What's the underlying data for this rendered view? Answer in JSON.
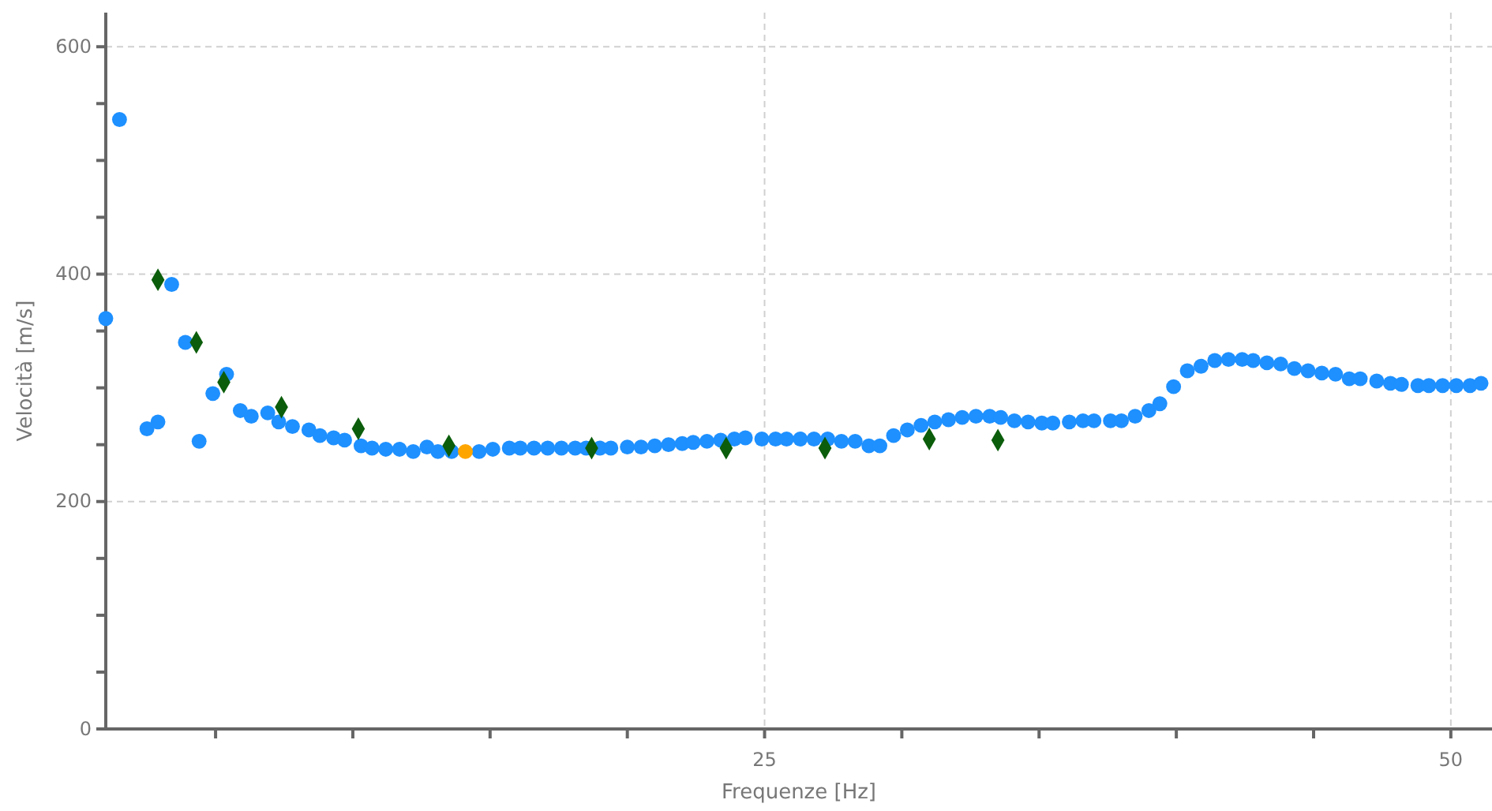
{
  "chart_data": {
    "type": "scatter",
    "xlabel": "Frequenze [Hz]",
    "ylabel": "Velocità [m/s]",
    "xlim": [
      1,
      51.5
    ],
    "xticks": [
      {
        "value": 5,
        "label": null
      },
      {
        "value": 10,
        "label": null
      },
      {
        "value": 15,
        "label": null
      },
      {
        "value": 20,
        "label": null
      },
      25,
      {
        "value": 30,
        "label": null
      },
      {
        "value": 35,
        "label": null
      },
      {
        "value": 40,
        "label": null
      },
      {
        "value": 45,
        "label": null
      },
      50
    ],
    "ylim": [
      0,
      630
    ],
    "yticks": [
      0,
      {
        "value": 50,
        "label": null
      },
      {
        "value": 100,
        "label": null
      },
      {
        "value": 150,
        "label": null
      },
      200,
      {
        "value": 250,
        "label": null
      },
      {
        "value": 300,
        "label": null
      },
      {
        "value": 350,
        "label": null
      },
      400,
      {
        "value": 450,
        "label": null
      },
      {
        "value": 500,
        "label": null
      },
      {
        "value": 550,
        "label": null
      },
      600
    ],
    "grid": true,
    "series": [
      {
        "color": "#1e90ff",
        "marker": "circle",
        "x": [
          1.0,
          1.5,
          2.5,
          2.9,
          3.4,
          3.9,
          4.4,
          4.9,
          5.4,
          5.9,
          6.3,
          6.9,
          7.3,
          7.8,
          8.4,
          8.8,
          9.3,
          9.7,
          10.3,
          10.7,
          11.2,
          11.7,
          12.2,
          12.7,
          13.1,
          13.6,
          14.6,
          15.1,
          15.7,
          16.1,
          16.6,
          17.1,
          17.6,
          18.1,
          18.5,
          19.0,
          19.4,
          20.0,
          20.5,
          21.0,
          21.5,
          22.0,
          22.4,
          22.9,
          23.4,
          23.9,
          24.3,
          24.9,
          25.4,
          25.8,
          26.3,
          26.8,
          27.3,
          27.8,
          28.3,
          28.8,
          29.2,
          29.7,
          30.2,
          30.7,
          31.2,
          31.7,
          32.2,
          32.7,
          33.2,
          33.6,
          34.1,
          34.6,
          35.1,
          35.5,
          36.1,
          36.6,
          37.0,
          37.6,
          38.0,
          38.5,
          39.0,
          39.4,
          39.9,
          40.4,
          40.9,
          41.4,
          41.9,
          42.4,
          42.8,
          43.3,
          43.8,
          44.3,
          44.8,
          45.3,
          45.8,
          46.3,
          46.7,
          47.3,
          47.8,
          48.2,
          48.8,
          49.2,
          49.7,
          50.2,
          50.7,
          51.1
        ],
        "values": [
          361,
          536,
          264,
          270,
          391,
          340,
          253,
          295,
          312,
          280,
          275,
          278,
          270,
          266,
          263,
          258,
          256,
          254,
          249,
          247,
          246,
          246,
          244,
          248,
          244,
          244,
          244,
          246,
          247,
          247,
          247,
          247,
          247,
          247,
          247,
          247,
          247,
          248,
          248,
          249,
          250,
          251,
          252,
          253,
          254,
          255,
          256,
          255,
          255,
          255,
          255,
          255,
          255,
          253,
          253,
          249,
          249,
          258,
          263,
          267,
          270,
          272,
          274,
          275,
          275,
          274,
          271,
          270,
          269,
          269,
          270,
          271,
          271,
          271,
          271,
          275,
          280,
          286,
          301,
          315,
          319,
          324,
          325,
          325,
          324,
          322,
          321,
          317,
          315,
          313,
          312,
          308,
          308,
          306,
          304,
          303,
          302,
          302,
          302,
          302,
          302,
          304
        ]
      },
      {
        "color": "#0b5d0b",
        "marker": "diamond",
        "x": [
          2.9,
          4.3,
          5.3,
          7.4,
          10.2,
          13.5,
          18.7,
          23.6,
          27.2,
          31.0,
          33.5
        ],
        "values": [
          395,
          340,
          305,
          283,
          264,
          249,
          247,
          247,
          247,
          255,
          254
        ]
      },
      {
        "color": "#ffa500",
        "marker": "circle",
        "x": [
          14.1
        ],
        "values": [
          244
        ]
      }
    ]
  }
}
